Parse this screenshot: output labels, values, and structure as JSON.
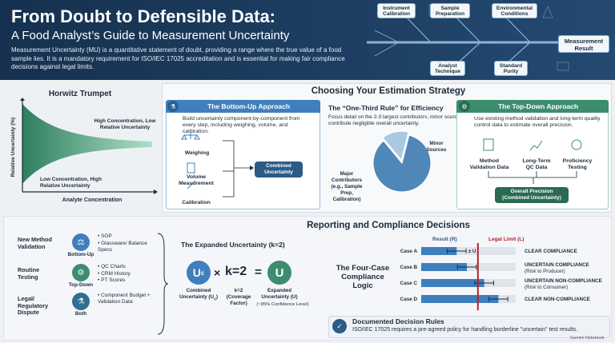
{
  "header": {
    "title": "From Doubt to Defensible Data:",
    "subtitle": "A Food Analyst’s Guide to Measurement Uncertainty",
    "description": "Measurement Uncertainty (MU) is a quantitative statement of doubt, providing a range where the true value of a food sample lies. It is a mandatory requirement for ISO/IEC 17025 accreditation and is essential for making fair compliance decisions against legal limits.",
    "fishbone": {
      "top": [
        "Instrument Calibration",
        "Sample Preparation",
        "Environmental Conditions"
      ],
      "bottom": [
        "Analyst Technique",
        "Standard Purity"
      ],
      "result": "Measurement Result"
    }
  },
  "horwitz": {
    "title": "Horwitz Trumpet",
    "ylabel": "Relative Uncertainty (%)",
    "xlabel": "Analyte Concentration",
    "high_label": "High Concentration, Low Relative Uncertainty",
    "low_label": "Low Concentration, High Relative Uncertainty"
  },
  "strategy": {
    "title": "Choosing Your Estimation Strategy",
    "bottom_up": {
      "head": "The Bottom-Up Approach",
      "desc": "Build uncertainty component-by-component from every step, including weighing, volume, and calibration.",
      "items": [
        "Weighing",
        "Volume Measurement",
        "Calibration"
      ],
      "result": "Combined Uncertainty"
    },
    "one_third": {
      "title": "The “One-Third Rule” for Efficiency",
      "desc": "Focus detail on the 2-3 largest contributors; minor sources contribute negligible overall uncertainty.",
      "chart_data": {
        "type": "pie",
        "categories": [
          "Major Contributors (e.g., Sample Prep, Calibration)",
          "Minor Sources"
        ],
        "values": [
          85,
          15
        ]
      }
    },
    "top_down": {
      "head": "The Top-Down Approach",
      "desc": "Use existing method validation and long-term quality control data to estimate overall precision.",
      "items": [
        "Method Validation Data",
        "Long-Term QC Data",
        "Proficiency Testing"
      ],
      "result": "Overall Precision (Combined Uncertainty)"
    }
  },
  "reporting": {
    "title": "Reporting and Compliance Decisions",
    "scenarios": [
      {
        "label": "New Method Validation",
        "approach": "Bottom-Up",
        "bullets": [
          "SOP",
          "Glassware/ Balance Specs"
        ],
        "color": "#3f7fbd"
      },
      {
        "label": "Routine Testing",
        "approach": "Top-Down",
        "bullets": [
          "QC Charts",
          "CRM History",
          "PT Scores"
        ],
        "color": "#3c8d6e"
      },
      {
        "label": "Legal/ Regulatory Dispute",
        "approach": "Both",
        "bullets": [
          "Component Budget + Validation Data"
        ],
        "color": "#2f6f8f"
      }
    ],
    "expanded": {
      "title": "The Expanded Uncertainty (k=2)",
      "uc_symbol": "U",
      "uc_sub": "c",
      "times": "×",
      "k": "k=2",
      "equals": "=",
      "u_symbol": "U",
      "uc_label": "Combined Uncertainty (U",
      "uc_label_sub": "c",
      "uc_label_end": ")",
      "k_label": "k=2 (Coverage Factor)",
      "u_label": "Expanded Uncertainty (U)",
      "u_note": "(~95% Confidence Level)"
    },
    "four_case": {
      "title": "The Four-Case Compliance Logic",
      "result_label": "Result (R)",
      "limit_label": "Legal Limit (L)",
      "pm_label": "± U",
      "chart_data": {
        "type": "bar",
        "categories": [
          "Case A",
          "Case B",
          "Case C",
          "Case D"
        ],
        "values": [
          0.45,
          0.58,
          0.8,
          0.98
        ],
        "limit": 0.72,
        "uncertainty": 0.12,
        "xlim": [
          0,
          1.2
        ]
      },
      "decisions": [
        {
          "main": "CLEAR COMPLIANCE",
          "sub": ""
        },
        {
          "main": "UNCERTAIN COMPLIANCE",
          "sub": "(Risk to Producer)"
        },
        {
          "main": "UNCERTAIN NON-COMPLIANCE",
          "sub": "(Risk to Consumer)"
        },
        {
          "main": "CLEAR NON-COMPLIANCE",
          "sub": ""
        }
      ]
    },
    "rules": {
      "title": "Documented Decision Rules",
      "text": "ISO/IEC 17025 requires a pre-agreed policy for handling borderline \"uncertain\" test results."
    }
  },
  "watermark": "Gemini Notebook",
  "colors": {
    "navy": "#16314f",
    "blue": "#3f7fbd",
    "green": "#3c8d6e",
    "red": "#b3202a"
  }
}
